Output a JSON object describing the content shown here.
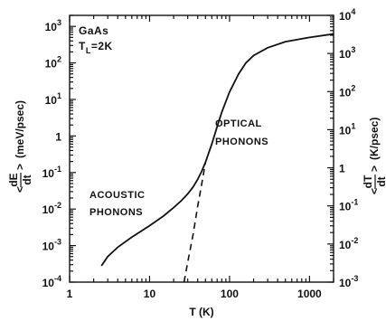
{
  "chart_data": {
    "type": "line",
    "xscale": "log",
    "yscale": "log",
    "x_ticks": [
      {
        "value": 1,
        "label": "1"
      },
      {
        "value": 10,
        "label": "10"
      },
      {
        "value": 100,
        "label": "100"
      },
      {
        "value": 1000,
        "label": "1000"
      }
    ],
    "y_left_ticks": [
      {
        "value": 0.0001,
        "base": "10",
        "exp": "-4"
      },
      {
        "value": 0.001,
        "base": "10",
        "exp": "-3"
      },
      {
        "value": 0.01,
        "base": "10",
        "exp": "-2"
      },
      {
        "value": 0.1,
        "base": "10",
        "exp": "-1"
      },
      {
        "value": 1,
        "base": "1",
        "exp": ""
      },
      {
        "value": 10,
        "base": "10",
        "exp": "1"
      },
      {
        "value": 100,
        "base": "10",
        "exp": "2"
      },
      {
        "value": 1000,
        "base": "10",
        "exp": "3"
      }
    ],
    "y_right_ticks": [
      {
        "value": 0.001,
        "base": "10",
        "exp": "-3"
      },
      {
        "value": 0.01,
        "base": "10",
        "exp": "-2"
      },
      {
        "value": 0.1,
        "base": "10",
        "exp": "-1"
      },
      {
        "value": 1,
        "base": "1",
        "exp": ""
      },
      {
        "value": 10,
        "base": "10",
        "exp": "1"
      },
      {
        "value": 100,
        "base": "10",
        "exp": "2"
      },
      {
        "value": 1000,
        "base": "10",
        "exp": "3"
      },
      {
        "value": 10000,
        "base": "10",
        "exp": "4"
      }
    ],
    "xlabel": "T (K)",
    "ylabel_left": {
      "prefix": "<",
      "num": "dE",
      "den": "dt",
      "suffix": ">",
      "units": "(meV/psec)"
    },
    "ylabel_right": {
      "prefix": "<",
      "num": "dT",
      "den": "dt",
      "suffix": ">",
      "units": "(K/psec)"
    },
    "xlim": [
      1,
      2000
    ],
    "ylim_left": [
      0.0001,
      2000
    ],
    "ylim_right": [
      0.001,
      10000
    ],
    "material": "GaAs",
    "lattice_temp": {
      "symbol": "T",
      "sub": "L",
      "value": "=2K"
    },
    "annotations": [
      {
        "line1": "OPTICAL",
        "line2": "PHONONS"
      },
      {
        "line1": "ACOUSTIC",
        "line2": "PHONONS"
      }
    ],
    "series": [
      {
        "style": "solid",
        "points": [
          [
            2.5,
            0.00028
          ],
          [
            3,
            0.0005
          ],
          [
            4,
            0.0009
          ],
          [
            6,
            0.0017
          ],
          [
            10,
            0.0035
          ],
          [
            15,
            0.0065
          ],
          [
            20,
            0.011
          ],
          [
            25,
            0.017
          ],
          [
            30,
            0.026
          ],
          [
            35,
            0.04
          ],
          [
            40,
            0.065
          ],
          [
            45,
            0.11
          ],
          [
            50,
            0.19
          ],
          [
            60,
            0.6
          ],
          [
            70,
            1.8
          ],
          [
            80,
            4.5
          ],
          [
            100,
            16
          ],
          [
            130,
            50
          ],
          [
            160,
            100
          ],
          [
            200,
            160
          ],
          [
            300,
            260
          ],
          [
            500,
            380
          ],
          [
            1000,
            500
          ],
          [
            2000,
            620
          ]
        ]
      },
      {
        "style": "dashed",
        "points": [
          [
            27,
            0.0001
          ],
          [
            30,
            0.00035
          ],
          [
            35,
            0.002
          ],
          [
            40,
            0.012
          ],
          [
            45,
            0.05
          ],
          [
            50,
            0.19
          ]
        ]
      }
    ]
  }
}
